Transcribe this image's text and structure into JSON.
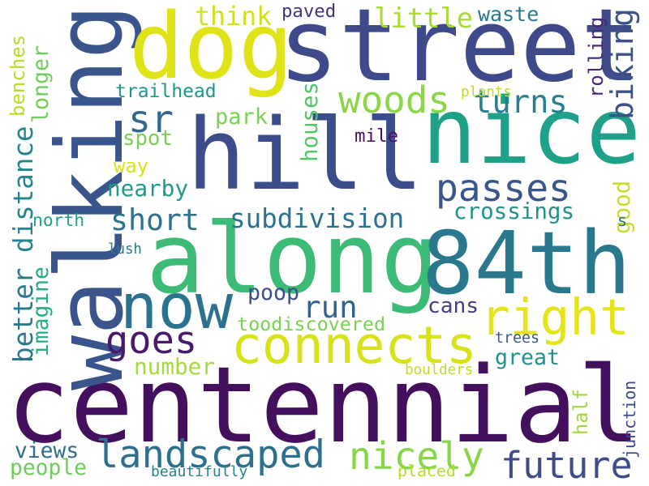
{
  "words": [
    {
      "text": "centennial",
      "color": "#440f5c",
      "vertical": false
    },
    {
      "text": "hill",
      "color": "#3b4e8b",
      "vertical": false
    },
    {
      "text": "along",
      "color": "#3bbb75",
      "vertical": false
    },
    {
      "text": "walking",
      "color": "#3a548c",
      "vertical": true
    },
    {
      "text": "street",
      "color": "#3e4a89",
      "vertical": false
    },
    {
      "text": "nice",
      "color": "#1fa088",
      "vertical": false
    },
    {
      "text": "84th",
      "color": "#2a788e",
      "vertical": false
    },
    {
      "text": "dog",
      "color": "#dfe318",
      "vertical": false
    },
    {
      "text": "now",
      "color": "#2c728e",
      "vertical": false
    },
    {
      "text": "connects",
      "color": "#d8e219",
      "vertical": false
    },
    {
      "text": "right",
      "color": "#e4e418",
      "vertical": false
    },
    {
      "text": "landscaped",
      "color": "#2d708e",
      "vertical": false
    },
    {
      "text": "future",
      "color": "#3e4c8a",
      "vertical": false
    },
    {
      "text": "nicely",
      "color": "#87d549",
      "vertical": false
    },
    {
      "text": "passes",
      "color": "#39568c",
      "vertical": false
    },
    {
      "text": "goes",
      "color": "#481a6c",
      "vertical": false
    },
    {
      "text": "woods",
      "color": "#8bd646",
      "vertical": false
    },
    {
      "text": "sr",
      "color": "#31688e",
      "vertical": false
    },
    {
      "text": "subdivision",
      "color": "#2c728e",
      "vertical": false
    },
    {
      "text": "biking",
      "color": "#3b528b",
      "vertical": true
    },
    {
      "text": "distance",
      "color": "#25848e",
      "vertical": true
    },
    {
      "text": "better",
      "color": "#2a788e",
      "vertical": true
    },
    {
      "text": "short",
      "color": "#2c718e",
      "vertical": false
    },
    {
      "text": "turns",
      "color": "#277f8e",
      "vertical": false
    },
    {
      "text": "think",
      "color": "#d0e11c",
      "vertical": false
    },
    {
      "text": "little",
      "color": "#a8db34",
      "vertical": false
    },
    {
      "text": "run",
      "color": "#33638d",
      "vertical": false
    },
    {
      "text": "great",
      "color": "#21918c",
      "vertical": false
    },
    {
      "text": "crossings",
      "color": "#21918c",
      "vertical": false
    },
    {
      "text": "cans",
      "color": "#423f85",
      "vertical": false
    },
    {
      "text": "toodiscovered",
      "color": "#7ad151",
      "vertical": false
    },
    {
      "text": "imagine",
      "color": "#26ad81",
      "vertical": true
    },
    {
      "text": "benches",
      "color": "#b5de2b",
      "vertical": true
    },
    {
      "text": "longer",
      "color": "#6ece58",
      "vertical": true
    },
    {
      "text": "houses",
      "color": "#52c569",
      "vertical": true
    },
    {
      "text": "rolling",
      "color": "#482878",
      "vertical": true
    },
    {
      "text": "good",
      "color": "#c2df23",
      "vertical": true
    },
    {
      "text": "junction",
      "color": "#3e4989",
      "vertical": true
    },
    {
      "text": "half",
      "color": "#a0da39",
      "vertical": true
    },
    {
      "text": "waste",
      "color": "#29798e",
      "vertical": false
    },
    {
      "text": "park",
      "color": "#7ad151",
      "vertical": false
    },
    {
      "text": "trailhead",
      "color": "#1f968b",
      "vertical": false
    },
    {
      "text": "spot",
      "color": "#7ad151",
      "vertical": false
    },
    {
      "text": "way",
      "color": "#d8e219",
      "vertical": false
    },
    {
      "text": "nearby",
      "color": "#1f9a8a",
      "vertical": false
    },
    {
      "text": "north",
      "color": "#20a386",
      "vertical": false
    },
    {
      "text": "poop",
      "color": "#3c4f8a",
      "vertical": false
    },
    {
      "text": "number",
      "color": "#a5db36",
      "vertical": false
    },
    {
      "text": "views",
      "color": "#2f6c8e",
      "vertical": false
    },
    {
      "text": "people",
      "color": "#6ccd5a",
      "vertical": false
    },
    {
      "text": "paved",
      "color": "#46327e",
      "vertical": false
    },
    {
      "text": "plants",
      "color": "#b5de2b",
      "vertical": false
    },
    {
      "text": "mile",
      "color": "#471164",
      "vertical": false
    },
    {
      "text": "s",
      "color": "#31688e",
      "vertical": false
    },
    {
      "text": "lush",
      "color": "#2a788e",
      "vertical": false
    },
    {
      "text": "trees",
      "color": "#39568c",
      "vertical": false
    },
    {
      "text": "boulders",
      "color": "#b8de29",
      "vertical": false
    },
    {
      "text": "beautifully",
      "color": "#26828e",
      "vertical": false
    },
    {
      "text": "placed",
      "color": "#b5de2b",
      "vertical": false
    }
  ]
}
